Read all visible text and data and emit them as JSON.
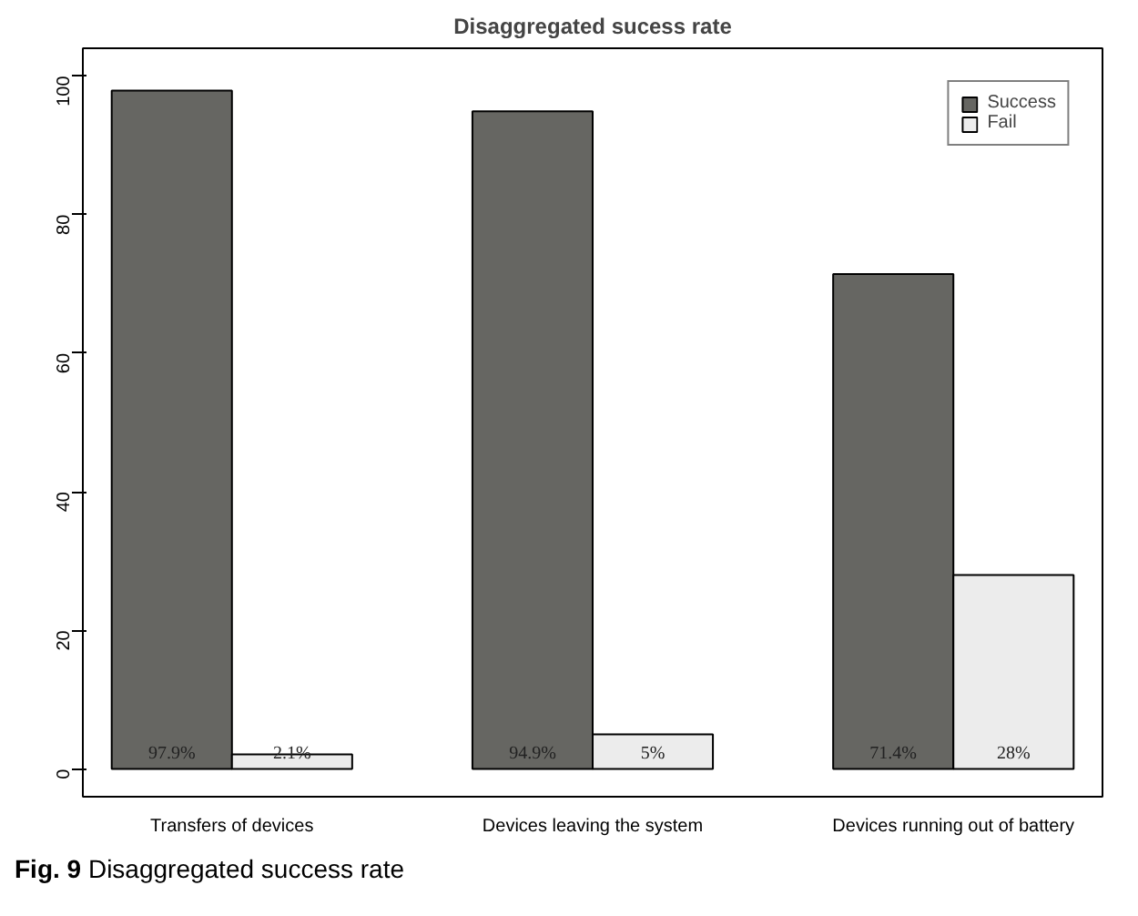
{
  "chart_data": {
    "type": "bar",
    "title": "Disaggregated sucess rate",
    "categories": [
      "Transfers of devices",
      "Devices leaving the system",
      "Devices running out of battery"
    ],
    "series": [
      {
        "name": "Success",
        "color": "#666662",
        "values": [
          97.9,
          94.9,
          71.4
        ],
        "value_labels": [
          "97.9%",
          "94.9%",
          "71.4%"
        ]
      },
      {
        "name": "Fail",
        "color": "#ececec",
        "values": [
          2.1,
          5,
          28
        ],
        "value_labels": [
          "2.1%",
          "5%",
          "28%"
        ]
      }
    ],
    "ylim": [
      -4,
      104
    ],
    "yticks": [
      0,
      20,
      40,
      60,
      80,
      100
    ],
    "grid": false,
    "legend": "top right",
    "annotations": [
      "Fig. 9 Disaggregated success rate"
    ]
  }
}
